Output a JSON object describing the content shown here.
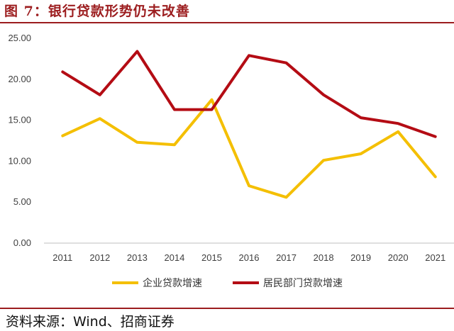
{
  "figure": {
    "title": "图 7：银行贷款形势仍未改善",
    "source": "资料来源：Wind、招商证券"
  },
  "chart_data": {
    "type": "line",
    "title": "",
    "xlabel": "",
    "ylabel": "",
    "x": [
      "2011",
      "2012",
      "2013",
      "2014",
      "2015",
      "2016",
      "2017",
      "2018",
      "2019",
      "2020",
      "2021"
    ],
    "ylim": [
      0,
      25
    ],
    "yticks": [
      "0.00",
      "5.00",
      "10.00",
      "15.00",
      "20.00",
      "25.00"
    ],
    "grid": false,
    "legend_position": "bottom",
    "series": [
      {
        "name": "企业贷款增速",
        "color": "#F4BF00",
        "values": [
          13.1,
          15.2,
          12.3,
          12.0,
          17.5,
          7.0,
          5.6,
          10.1,
          10.9,
          13.6,
          8.1
        ]
      },
      {
        "name": "居民部门贷款增速",
        "color": "#B40C14",
        "values": [
          20.9,
          18.1,
          23.4,
          16.3,
          16.3,
          22.9,
          22.0,
          18.1,
          15.3,
          14.6,
          13.0
        ]
      }
    ]
  }
}
